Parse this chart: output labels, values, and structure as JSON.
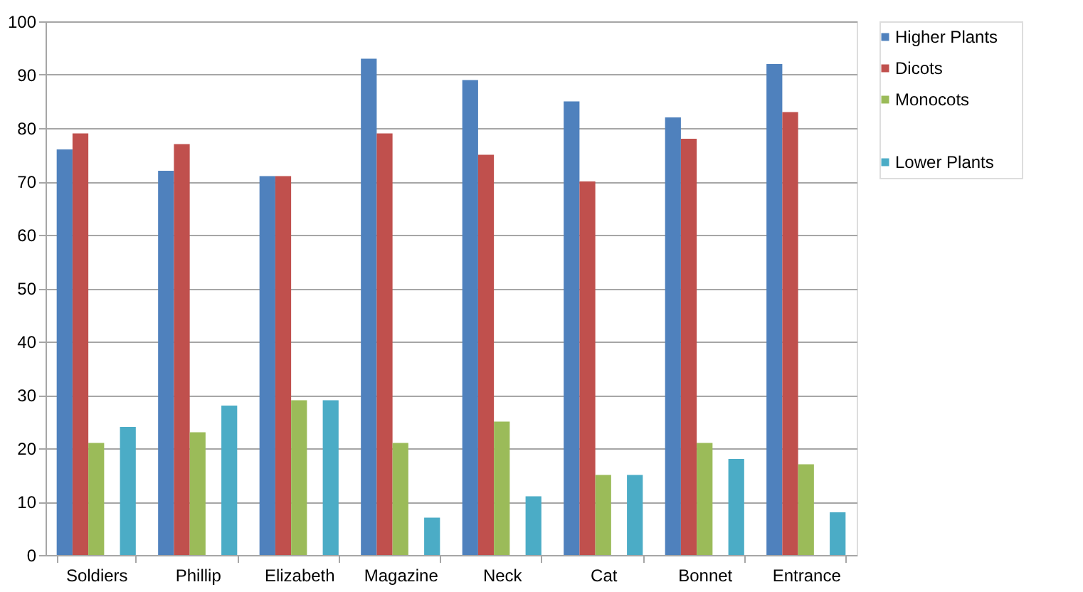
{
  "chart_data": {
    "type": "bar",
    "categories": [
      "Soldiers",
      "Phillip",
      "Elizabeth",
      "Magazine",
      "Neck",
      "Cat",
      "Bonnet",
      "Entrance"
    ],
    "series": [
      {
        "name": "Higher Plants",
        "color": "#4f81bd",
        "values": [
          76,
          72,
          71,
          93,
          89,
          85,
          82,
          92
        ]
      },
      {
        "name": "Dicots",
        "color": "#c0504d",
        "values": [
          79,
          77,
          71,
          79,
          75,
          70,
          78,
          83
        ]
      },
      {
        "name": "Monocots",
        "color": "#9bbb59",
        "values": [
          21,
          23,
          29,
          21,
          25,
          15,
          21,
          17
        ]
      },
      {
        "color": "#8064a2",
        "values": [
          null,
          null,
          null,
          null,
          null,
          null,
          null,
          null
        ]
      },
      {
        "name": "Lower Plants",
        "color": "#4bacc6",
        "values": [
          24,
          28,
          29,
          7,
          11,
          15,
          18,
          8
        ]
      }
    ],
    "ylim": [
      0,
      100
    ],
    "yticks": [
      0,
      10,
      20,
      30,
      40,
      50,
      60,
      70,
      80,
      90,
      100
    ],
    "grid": "y",
    "legend": "right"
  }
}
